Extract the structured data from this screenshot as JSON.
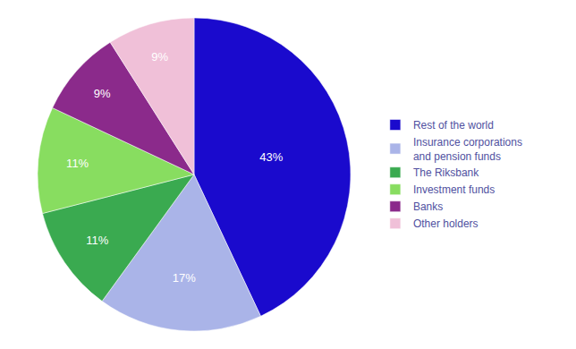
{
  "chart_data": {
    "type": "pie",
    "categories": [
      "Rest of the world",
      "Insurance corporations\nand pension funds",
      "The Riksbank",
      "Investment funds",
      "Banks",
      "Other holders"
    ],
    "values": [
      43,
      17,
      11,
      11,
      9,
      9
    ],
    "value_labels": [
      "43%",
      "17%",
      "11%",
      "11%",
      "9%",
      "9%"
    ],
    "colors": [
      "#1a0acd",
      "#aab4e8",
      "#3aaa50",
      "#88dd60",
      "#8b2a8b",
      "#f0c0d8"
    ],
    "data_labels": true,
    "legend": "right"
  }
}
